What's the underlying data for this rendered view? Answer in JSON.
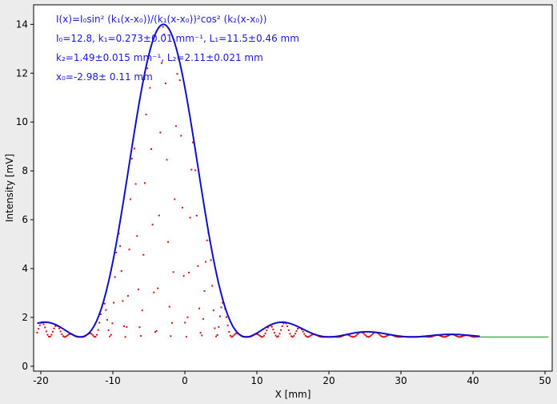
{
  "chart_data": {
    "type": "scatter",
    "xlabel": "X [mm]",
    "ylabel": "Intensity [mV]",
    "xlim": [
      -21,
      51
    ],
    "ylim": [
      -0.2,
      14.8
    ],
    "xticks": [
      -20,
      -10,
      0,
      10,
      20,
      30,
      40,
      50
    ],
    "yticks": [
      0,
      2,
      4,
      6,
      8,
      10,
      12,
      14
    ],
    "grid": false,
    "colors": {
      "fit": "#1010c8",
      "data": "#d41010",
      "tail": "#109010",
      "annotation": "#1a1adb"
    },
    "annotation_lines": [
      "I(x)=I₀sin² (k₁(x-x₀))/(k₁(x-x₀))²cos² (k₂(x-x₀))",
      "I₀=12.8,  k₁=0.273±0.01 mm⁻¹,   L₁=11.5±0.46 mm",
      "k₂=1.49±0.015 mm⁻¹,   L₂=2.11±0.021 mm",
      "x₀=-2.98±  0.11 mm"
    ],
    "fit": {
      "formula": "I(x)=I0 sin^2(k1(x-x0))/(k1(x-x0))^2 cos^2(k2(x-x0)) + baseline",
      "I0": 12.8,
      "k1": 0.273,
      "k2": 1.49,
      "x0": -2.98,
      "baseline": 1.2,
      "x_range": [
        -20.5,
        41
      ]
    },
    "series": [
      {
        "kind": "line",
        "x_range": [
          -20.5,
          41
        ],
        "source": "envelope of fit"
      },
      {
        "kind": "scatter",
        "x_range": [
          -20.5,
          41
        ],
        "source": "measured points"
      },
      {
        "kind": "line",
        "x_range": [
          41,
          50.5
        ],
        "source": "tail",
        "values": [
          1.2,
          1.2
        ]
      }
    ]
  }
}
